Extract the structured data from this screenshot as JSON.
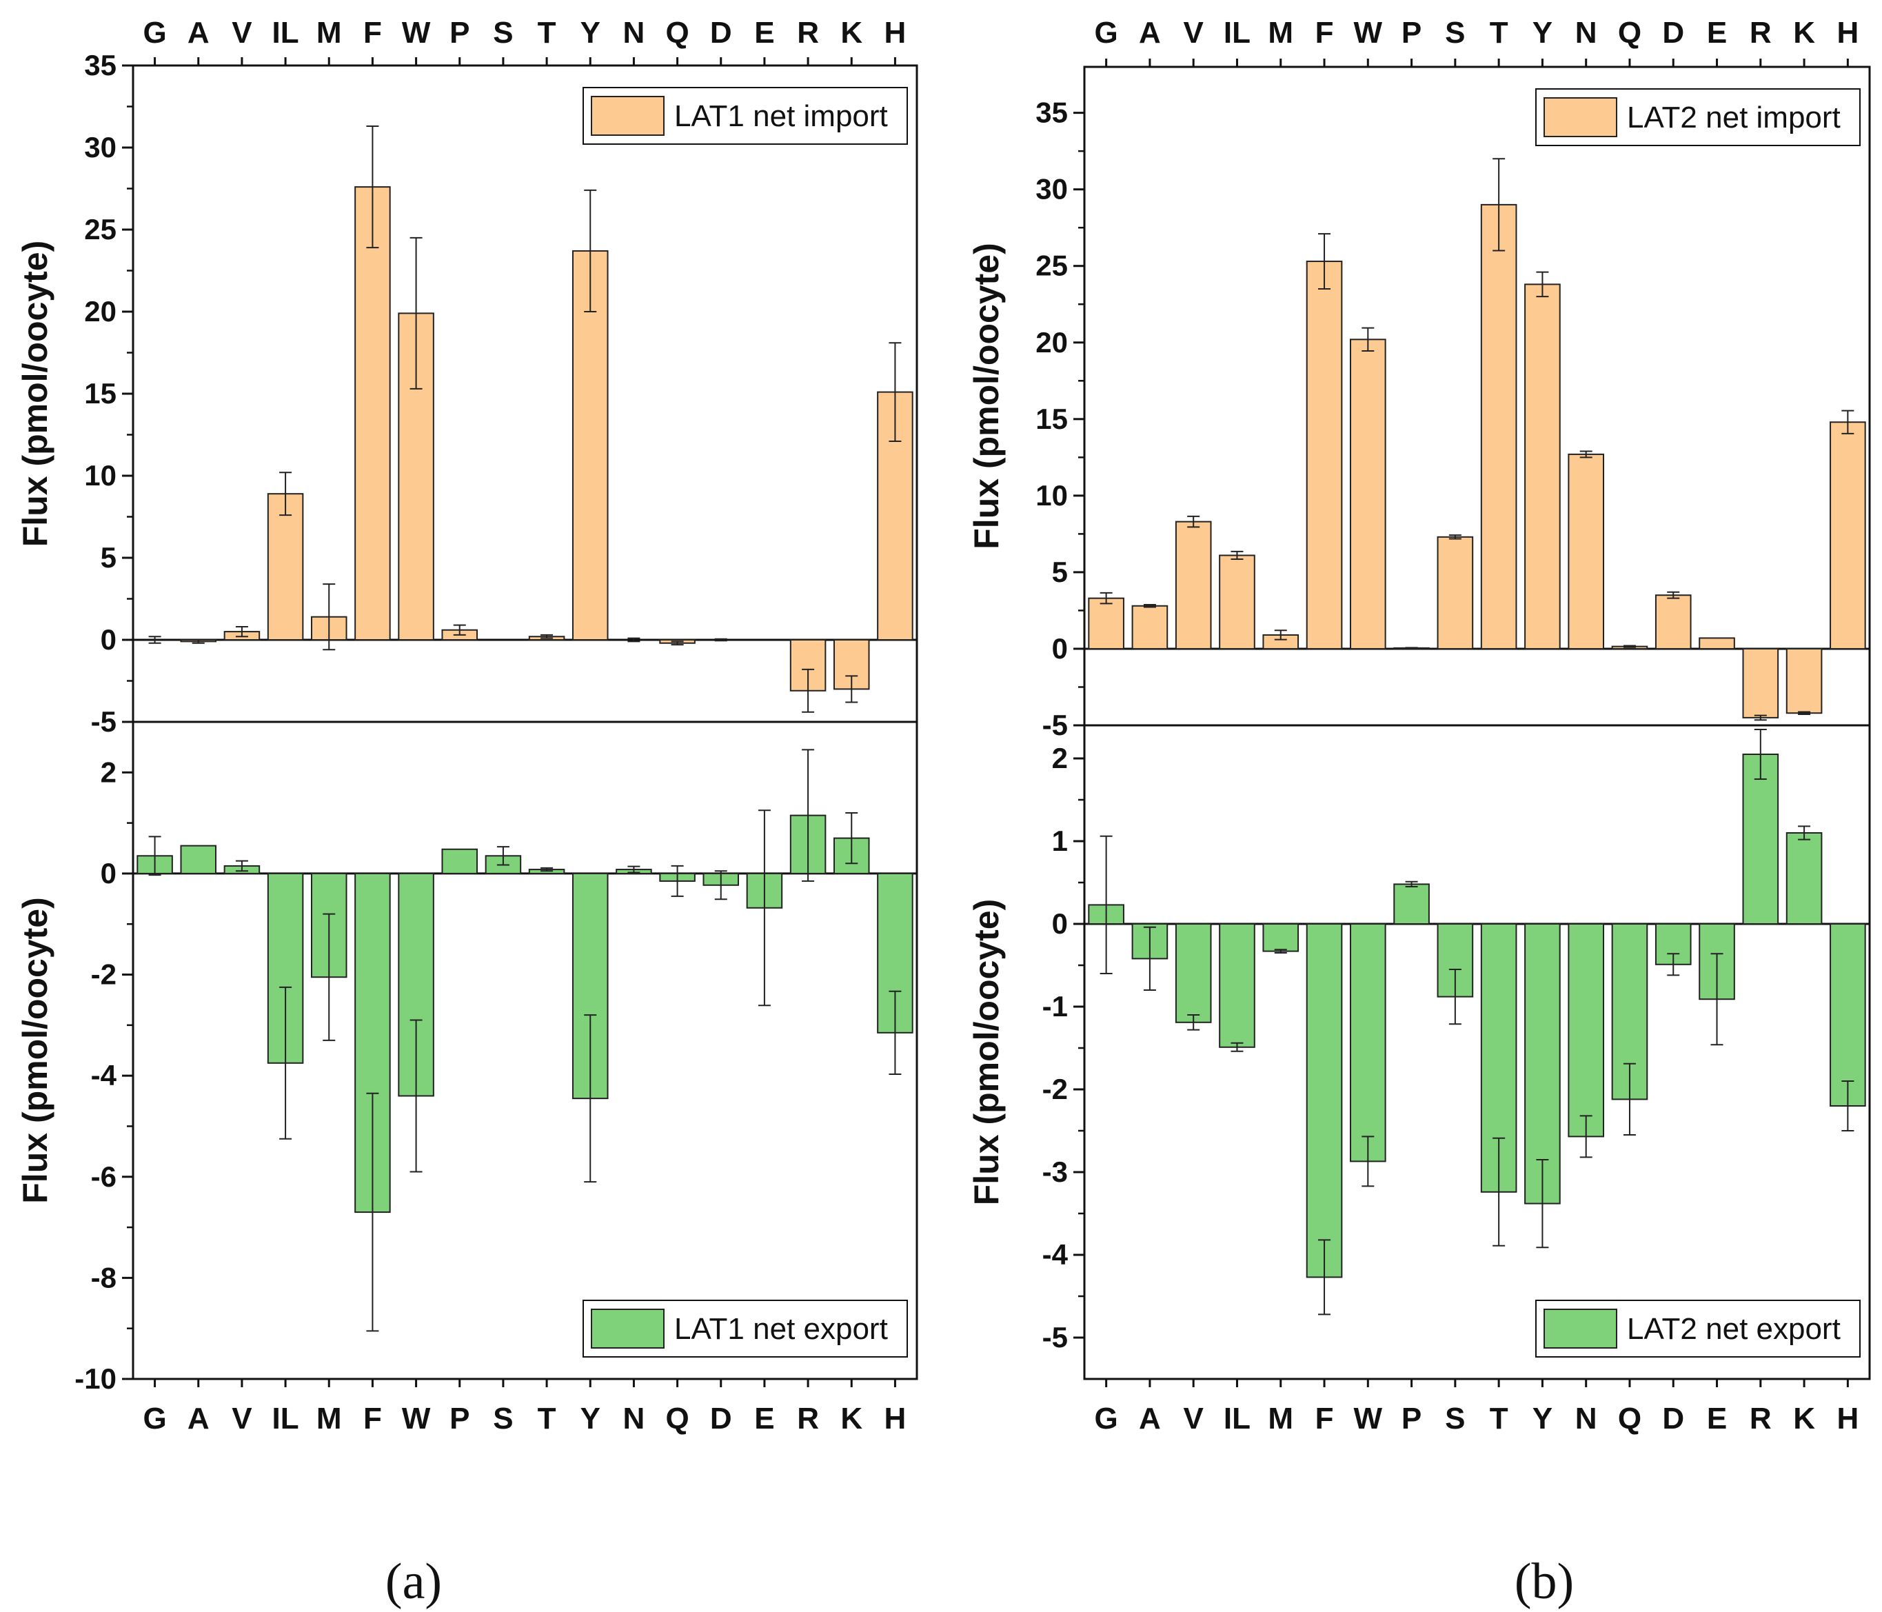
{
  "chart_data": [
    {
      "panel": "a",
      "type": "bar",
      "title": "",
      "categories": [
        "G",
        "A",
        "V",
        "IL",
        "M",
        "F",
        "W",
        "P",
        "S",
        "T",
        "Y",
        "N",
        "Q",
        "D",
        "E",
        "R",
        "K",
        "H"
      ],
      "subplots": [
        {
          "id": "a-top",
          "ylabel": "Flux (pmol/oocyte)",
          "ylim": [
            -5,
            35
          ],
          "yticks": [
            -5,
            0,
            5,
            10,
            15,
            20,
            25,
            30,
            35
          ],
          "yticklabels": [
            "-5",
            "0",
            "5",
            "10",
            "15",
            "20",
            "25",
            "30",
            "35"
          ],
          "legend": "top-right",
          "color": "#fdcb92",
          "series": [
            {
              "name": "LAT1 net import",
              "values": [
                0.0,
                -0.1,
                0.5,
                8.9,
                1.4,
                27.6,
                19.9,
                0.6,
                0.0,
                0.2,
                23.7,
                0.0,
                -0.2,
                0.0,
                0.0,
                -3.1,
                -3.0,
                15.1
              ],
              "errors": [
                0.2,
                0.1,
                0.3,
                1.3,
                2.0,
                3.7,
                4.6,
                0.3,
                0.0,
                0.1,
                3.7,
                0.1,
                0.1,
                0.05,
                0.0,
                1.3,
                0.8,
                3.0
              ]
            }
          ]
        },
        {
          "id": "a-bottom",
          "ylabel": "Flux (pmol/oocyte)",
          "ylim": [
            -10,
            3
          ],
          "yticks": [
            -10,
            -8,
            -6,
            -4,
            -2,
            0,
            2
          ],
          "yticklabels": [
            "-10",
            "-8",
            "-6",
            "-4",
            "-2",
            "0",
            "2"
          ],
          "legend": "bottom-right",
          "color": "#7fd17a",
          "series": [
            {
              "name": "LAT1 net export",
              "values": [
                0.35,
                0.55,
                0.15,
                -3.75,
                -2.05,
                -6.7,
                -4.4,
                0.48,
                0.35,
                0.08,
                -4.45,
                0.08,
                -0.15,
                -0.23,
                -0.68,
                1.15,
                0.7,
                -3.15
              ],
              "errors": [
                0.38,
                0.0,
                0.1,
                1.5,
                1.25,
                2.35,
                1.5,
                0.0,
                0.18,
                0.03,
                1.65,
                0.06,
                0.3,
                0.28,
                1.93,
                1.3,
                0.5,
                0.82
              ]
            }
          ]
        }
      ],
      "xlabels_top": true,
      "xlabels_bottom": true
    },
    {
      "panel": "b",
      "type": "bar",
      "title": "",
      "categories": [
        "G",
        "A",
        "V",
        "IL",
        "M",
        "F",
        "W",
        "P",
        "S",
        "T",
        "Y",
        "N",
        "Q",
        "D",
        "E",
        "R",
        "K",
        "H"
      ],
      "subplots": [
        {
          "id": "b-top",
          "ylabel": "Flux (pmol/oocyte)",
          "ylim": [
            -5,
            38
          ],
          "yticks": [
            -5,
            0,
            5,
            10,
            15,
            20,
            25,
            30,
            35
          ],
          "yticklabels": [
            "-5",
            "0",
            "5",
            "10",
            "15",
            "20",
            "25",
            "30",
            "35"
          ],
          "legend": "top-right",
          "color": "#fdcb92",
          "series": [
            {
              "name": "LAT2 net import",
              "values": [
                3.3,
                2.8,
                8.3,
                6.1,
                0.9,
                25.3,
                20.2,
                0.05,
                7.3,
                29.0,
                23.8,
                12.7,
                0.15,
                3.5,
                0.7,
                -4.5,
                -4.2,
                14.8
              ],
              "errors": [
                0.35,
                0.08,
                0.35,
                0.25,
                0.3,
                1.8,
                0.75,
                0.02,
                0.12,
                3.0,
                0.8,
                0.2,
                0.05,
                0.2,
                0.0,
                0.15,
                0.08,
                0.75
              ]
            }
          ]
        },
        {
          "id": "b-bottom",
          "ylabel": "Flux (pmol/oocyte)",
          "ylim": [
            -5.5,
            2.4
          ],
          "yticks": [
            -5,
            -4,
            -3,
            -2,
            -1,
            0,
            1,
            2
          ],
          "yticklabels": [
            "-5",
            "-4",
            "-3",
            "-2",
            "-1",
            "0",
            "1",
            "2"
          ],
          "legend": "bottom-right",
          "color": "#7fd17a",
          "series": [
            {
              "name": "LAT2 net export",
              "values": [
                0.23,
                -0.42,
                -1.19,
                -1.49,
                -0.33,
                -4.27,
                -2.87,
                0.48,
                -0.88,
                -3.24,
                -3.38,
                -2.57,
                -2.12,
                -0.49,
                -0.91,
                2.05,
                1.1,
                -2.2
              ],
              "errors": [
                0.83,
                0.38,
                0.09,
                0.05,
                0.02,
                0.45,
                0.3,
                0.03,
                0.33,
                0.65,
                0.53,
                0.25,
                0.43,
                0.13,
                0.55,
                0.3,
                0.08,
                0.3
              ]
            }
          ]
        }
      ],
      "xlabels_top": true,
      "xlabels_bottom": true
    }
  ],
  "panel_labels": [
    "(a)",
    "(b)"
  ]
}
